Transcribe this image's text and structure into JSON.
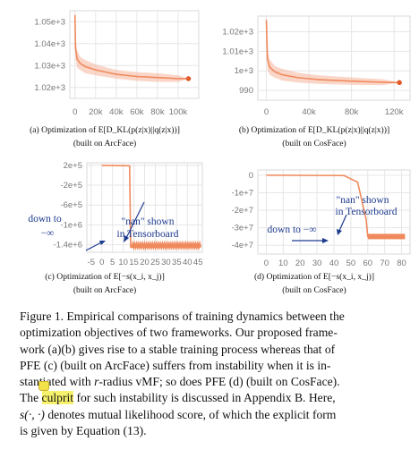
{
  "figure": {
    "panels": [
      {
        "id": "a",
        "caption_main": "(a) Optimization of E[D_KL(p(z|x)||q(z|x))]",
        "caption_sub": "(built on ArcFace)"
      },
      {
        "id": "b",
        "caption_main": "(b) Optimization of E[D_KL(p(z|x)||q(z|x))]",
        "caption_sub": "(built on CosFace)"
      },
      {
        "id": "c",
        "caption_main": "(c) Optimization of E[−s(x_i, x_j)]",
        "caption_sub": "(built on ArcFace)"
      },
      {
        "id": "d",
        "caption_main": "(d) Optimization of E[−s(x_i, x_j)]",
        "caption_sub": "(built on CosFace)"
      }
    ],
    "annotations": {
      "c_nan_line1": "\"nan\" shown",
      "c_nan_line2": "in Tensorboard",
      "c_down_line1": "down to",
      "c_down_line2": "−∞",
      "d_nan_line1": "\"nan\" shown",
      "d_nan_line2": "in Tensorboard",
      "d_down": "down to −∞"
    },
    "caption_text": {
      "l1": "Figure 1. Empirical comparisons of training dynamics between the",
      "l2": "optimization objectives of two frameworks. Our proposed frame-",
      "l3": "work (a)(b) gives rise to a stable training process whereas that of",
      "l4": "PFE (c) (built on ArcFace) suffers from instability when it is in-",
      "l5a": "stantiated with ",
      "l5b": "r",
      "l5c": "-radius vMF; so does PFE (d) (built on CosFace).",
      "l6a": "The ",
      "l6b": "culprit",
      "l6c": " for such instability is discussed in Appendix B. Here,",
      "l7a": "s(·, ·)",
      "l7b": " denotes mutual likelihood score, of which the explicit form",
      "l8": "is given by Equation (13)."
    },
    "colors": {
      "line": "#f08a5d",
      "band": "#f6b59c",
      "marker": "#e35b2c",
      "annotation": "#1d3b8f",
      "highlight": "#f7f26c"
    }
  },
  "chart_data": [
    {
      "id": "a",
      "type": "line",
      "x_ticks": [
        "0",
        "20k",
        "40k",
        "60k",
        "80k",
        "100k"
      ],
      "y_ticks": [
        "1.05e+3",
        "1.04e+3",
        "1.03e+3",
        "1.02e+3"
      ],
      "xlim": [
        -5000,
        120000
      ],
      "ylim": [
        1015,
        1055
      ],
      "x": [
        0,
        500,
        2000,
        5000,
        10000,
        20000,
        30000,
        40000,
        60000,
        80000,
        100000,
        110000
      ],
      "y": [
        1053,
        1038,
        1033,
        1031,
        1029.5,
        1028,
        1027,
        1026,
        1025,
        1024.5,
        1024,
        1024
      ],
      "band": [
        6,
        5,
        4,
        3,
        3,
        2.5,
        2.2,
        2,
        2,
        2,
        1.5,
        0
      ]
    },
    {
      "id": "b",
      "type": "line",
      "x_ticks": [
        "0",
        "40k",
        "80k",
        "120k"
      ],
      "y_ticks": [
        "1.02e+3",
        "1.01e+3",
        "1e+3",
        "990"
      ],
      "xlim": [
        -8000,
        135000
      ],
      "ylim": [
        985,
        1028
      ],
      "x": [
        0,
        1000,
        3000,
        8000,
        15000,
        30000,
        50000,
        70000,
        90000,
        110000,
        125000
      ],
      "y": [
        1026,
        1006,
        1002,
        999.5,
        998,
        996.5,
        995.5,
        995,
        994.5,
        994.2,
        994
      ],
      "band": [
        6,
        5,
        4,
        3,
        3,
        2.5,
        2.2,
        2,
        1.8,
        1.5,
        0
      ]
    },
    {
      "id": "c",
      "type": "line",
      "x_ticks": [
        "-5",
        "0",
        "5",
        "10",
        "15",
        "20",
        "25",
        "30",
        "35",
        "40",
        "45"
      ],
      "y_ticks": [
        "2e+5",
        "-2e+5",
        "-6e+5",
        "-1e+6",
        "-1.4e+6"
      ],
      "xlim": [
        -7,
        47
      ],
      "ylim": [
        -1550000,
        250000
      ],
      "x": [
        0,
        13,
        13.5,
        46
      ],
      "y": [
        200000,
        190000,
        -1450000,
        -1450000
      ]
    },
    {
      "id": "d",
      "type": "line",
      "x_ticks": [
        "0",
        "10",
        "20",
        "30",
        "40",
        "50",
        "60",
        "70",
        "80"
      ],
      "y_ticks": [
        "0",
        "-1e+7",
        "-2e+7",
        "-3e+7",
        "-4e+7"
      ],
      "xlim": [
        -5,
        85
      ],
      "ylim": [
        -45000000,
        3000000
      ],
      "x": [
        0,
        46,
        54,
        59,
        60,
        82
      ],
      "y": [
        0,
        -200000,
        -4000000,
        -25000000,
        -35000000,
        -35000000
      ]
    }
  ]
}
